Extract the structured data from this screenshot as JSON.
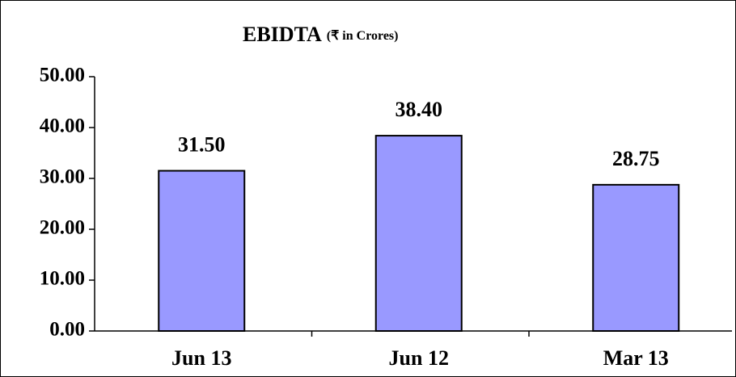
{
  "chart_data": {
    "type": "bar",
    "title": "EBIDTA",
    "subtitle": "(₹ in Crores)",
    "categories": [
      "Jun 13",
      "Jun 12",
      "Mar 13"
    ],
    "values": [
      31.5,
      38.4,
      28.75
    ],
    "value_labels": [
      "31.50",
      "38.40",
      "28.75"
    ],
    "color": "#9999ff",
    "ylim": [
      0,
      50
    ],
    "yticks": [
      {
        "value": 0,
        "label": "0.00"
      },
      {
        "value": 10,
        "label": "10.00"
      },
      {
        "value": 20,
        "label": "20.00"
      },
      {
        "value": 30,
        "label": "30.00"
      },
      {
        "value": 40,
        "label": "40.00"
      },
      {
        "value": 50,
        "label": "50.00"
      }
    ],
    "grid": false
  }
}
